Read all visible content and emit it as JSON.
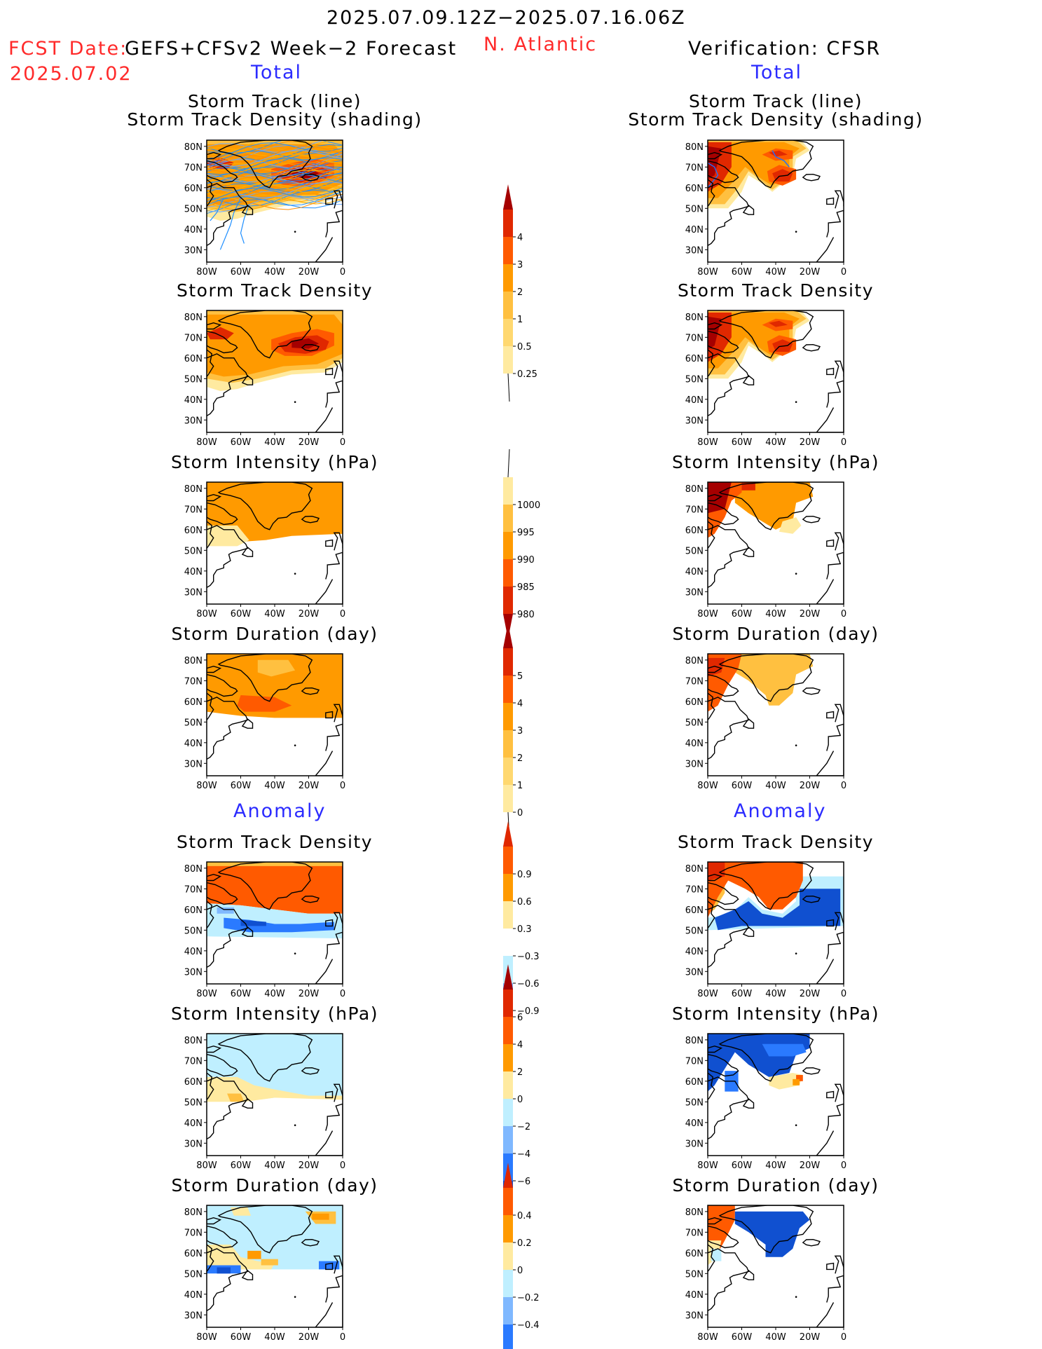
{
  "header": {
    "date_range": "2025.07.09.12Z−2025.07.16.06Z",
    "fcst_label": "FCST Date:",
    "model": "GEFS+CFSv2 Week−2 Forecast",
    "fcst_date": "2025.07.02",
    "region": "N. Atlantic",
    "verification": "Verification: CFSR",
    "left_total": "Total",
    "right_total": "Total",
    "left_anomaly": "Anomaly",
    "right_anomaly": "Anomaly"
  },
  "panels": {
    "p1": "Storm Track (line)",
    "p1b": "Storm Track Density (shading)",
    "p2": "Storm Track Density",
    "p3": "Storm Intensity (hPa)",
    "p4": "Storm Duration (day)",
    "p5": "Storm Track Density",
    "p6": "Storm Intensity (hPa)",
    "p7": "Storm Duration (day)"
  },
  "axes": {
    "lat": [
      "80N",
      "70N",
      "60N",
      "50N",
      "40N",
      "30N"
    ],
    "lon": [
      "80W",
      "60W",
      "40W",
      "20W",
      "0"
    ]
  },
  "colorbars": {
    "density_total": [
      "4",
      "3",
      "2",
      "1",
      "0.5",
      "0.25"
    ],
    "intensity_total": [
      "1000",
      "995",
      "990",
      "985",
      "980"
    ],
    "duration_total": [
      "5",
      "4",
      "3",
      "2",
      "1",
      "0"
    ],
    "density_anom": [
      "0.9",
      "0.6",
      "0.3",
      "−0.3",
      "−0.6",
      "−0.9"
    ],
    "intensity_anom": [
      "6",
      "4",
      "2",
      "0",
      "−2",
      "−4",
      "−6"
    ],
    "duration_anom": [
      "0.4",
      "0.2",
      "0",
      "−0.2",
      "−0.4"
    ]
  },
  "colors": {
    "header_red": "#ff2a2a",
    "label_blue": "#2b2bff",
    "darkred": "#a50000",
    "red": "#e02800",
    "orange_red": "#ff5a00",
    "orange": "#ff9a00",
    "light_orange": "#ffc040",
    "pale_yellow": "#ffeaa0",
    "light_blue": "#bfefff",
    "mid_blue": "#7fb8ff",
    "blue": "#2a7aff",
    "dark_blue": "#1050d0"
  }
}
